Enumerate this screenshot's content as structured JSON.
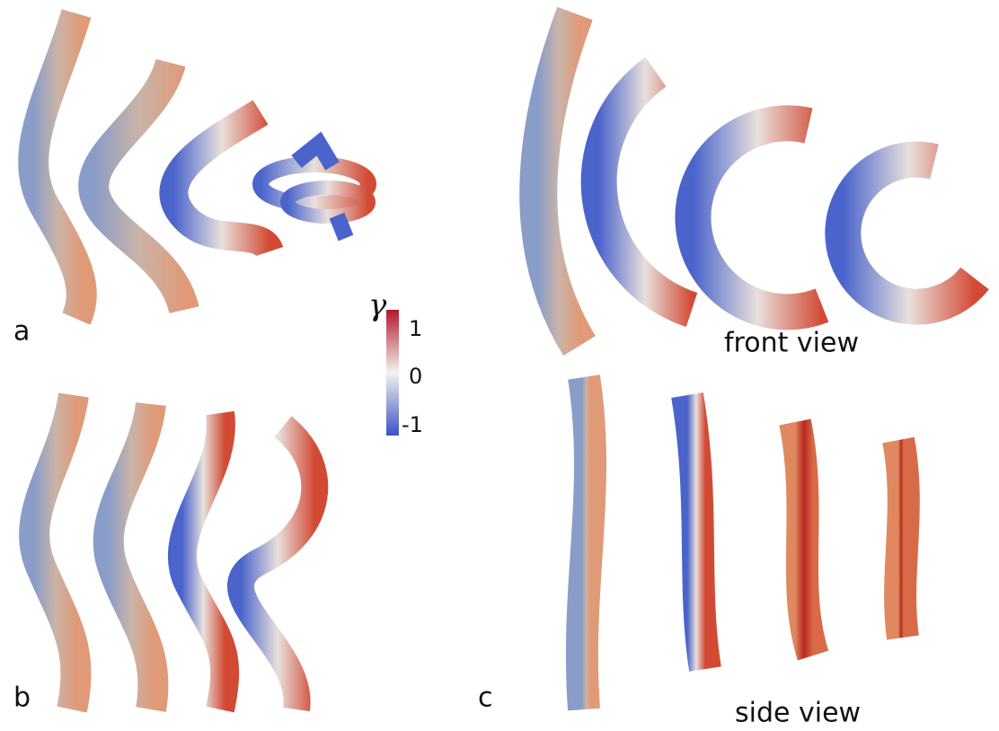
{
  "panels": {
    "a": "a",
    "b": "b",
    "c": "c"
  },
  "views": {
    "front": "front view",
    "side": "side view"
  },
  "colorbar": {
    "label": "γ",
    "ticks": [
      1,
      0,
      -1
    ]
  }
}
